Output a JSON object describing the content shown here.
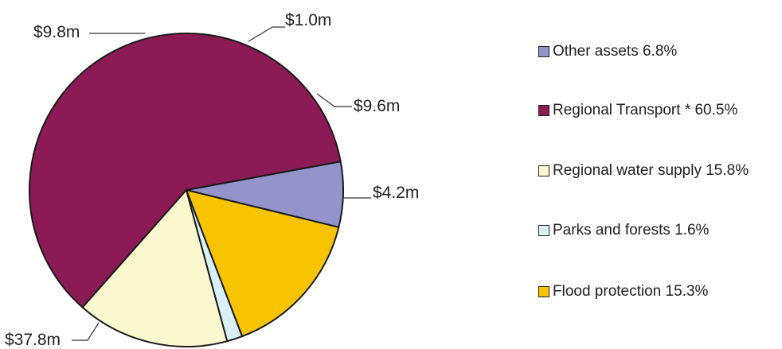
{
  "chart_data": {
    "type": "pie",
    "slices": [
      {
        "name": "Other assets",
        "value": 4.2,
        "percent_label": "6.8%",
        "value_label": "$4.2m",
        "color": "#9494cc"
      },
      {
        "name": "Regional Transport *",
        "value": 37.8,
        "percent_label": "60.5%",
        "value_label": "$37.8m",
        "color": "#8b1a55"
      },
      {
        "name": "Regional water supply",
        "value": 9.8,
        "percent_label": "15.8%",
        "value_label": "$9.8m",
        "color": "#fcf8d0"
      },
      {
        "name": "Parks and forests ",
        "value": 1.0,
        "percent_label": "1.6%",
        "value_label": "$1.0m",
        "color": "#d8f0f6"
      },
      {
        "name": "Flood protection",
        "value": 9.6,
        "percent_label": "15.3%",
        "value_label": "$9.6m",
        "color": "#f8c300"
      }
    ],
    "legend": [
      {
        "label": "Other assets 6.8%",
        "color": "#9494cc"
      },
      {
        "label": "Regional Transport * 60.5%",
        "color": "#8b1a55"
      },
      {
        "label": "Regional water supply 15.8%",
        "color": "#fcf8d0"
      },
      {
        "label": "Parks and forests  1.6%",
        "color": "#d8f0f6"
      },
      {
        "label": "Flood protection 15.3%",
        "color": "#f8c300"
      }
    ],
    "legend_position": "right"
  }
}
